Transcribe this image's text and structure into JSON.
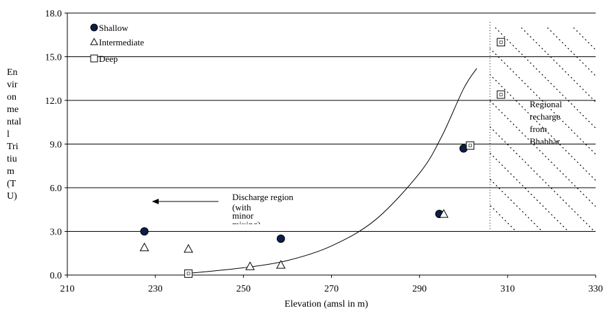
{
  "chart_data": {
    "type": "scatter",
    "xlabel": "Elevation (amsl in m)",
    "ylabel_lines": [
      "En",
      "vir",
      "on",
      "me",
      "ntal",
      "l",
      "Tri",
      "tiu",
      "m",
      "(T",
      "U)"
    ],
    "xlim": [
      210,
      330
    ],
    "ylim": [
      0,
      18
    ],
    "x_ticks": [
      "210",
      "230",
      "250",
      "270",
      "290",
      "310",
      "330"
    ],
    "y_ticks": [
      "0.0",
      "3.0",
      "6.0",
      "9.0",
      "12.0",
      "15.0",
      "18.0"
    ],
    "grid": "horizontal",
    "legend_position": "top-left",
    "series": [
      {
        "name": "Shallow",
        "marker": "filled-circle",
        "color": "#0b1f4a",
        "points": [
          [
            227.5,
            3.0
          ],
          [
            258.5,
            2.5
          ],
          [
            294.5,
            4.2
          ],
          [
            300.0,
            8.7
          ]
        ]
      },
      {
        "name": "Intermediate",
        "marker": "triangle",
        "color": "#000000",
        "points": [
          [
            227.5,
            1.9
          ],
          [
            237.5,
            1.8
          ],
          [
            251.5,
            0.6
          ],
          [
            258.5,
            0.7
          ],
          [
            295.5,
            4.2
          ]
        ]
      },
      {
        "name": "Deep",
        "marker": "square",
        "color": "#000000",
        "points": [
          [
            237.5,
            0.1
          ],
          [
            301.5,
            8.9
          ],
          [
            308.5,
            12.4
          ],
          [
            308.5,
            16.0
          ]
        ]
      }
    ],
    "trend_curve": [
      [
        237,
        0.1
      ],
      [
        250,
        0.5
      ],
      [
        260,
        1.0
      ],
      [
        270,
        2.0
      ],
      [
        280,
        3.8
      ],
      [
        290,
        7.0
      ],
      [
        295,
        9.5
      ],
      [
        300,
        12.8
      ],
      [
        303,
        14.2
      ]
    ],
    "recharge_region": {
      "x_start": 306,
      "x_end": 330,
      "y_min": 3.0,
      "y_max": 17.0
    },
    "annotations": {
      "discharge": [
        "Discharge region",
        "(with",
        "minor",
        "mixing)"
      ],
      "recharge": [
        "Regional",
        "recharge",
        "from",
        "Bhabhar"
      ]
    }
  }
}
